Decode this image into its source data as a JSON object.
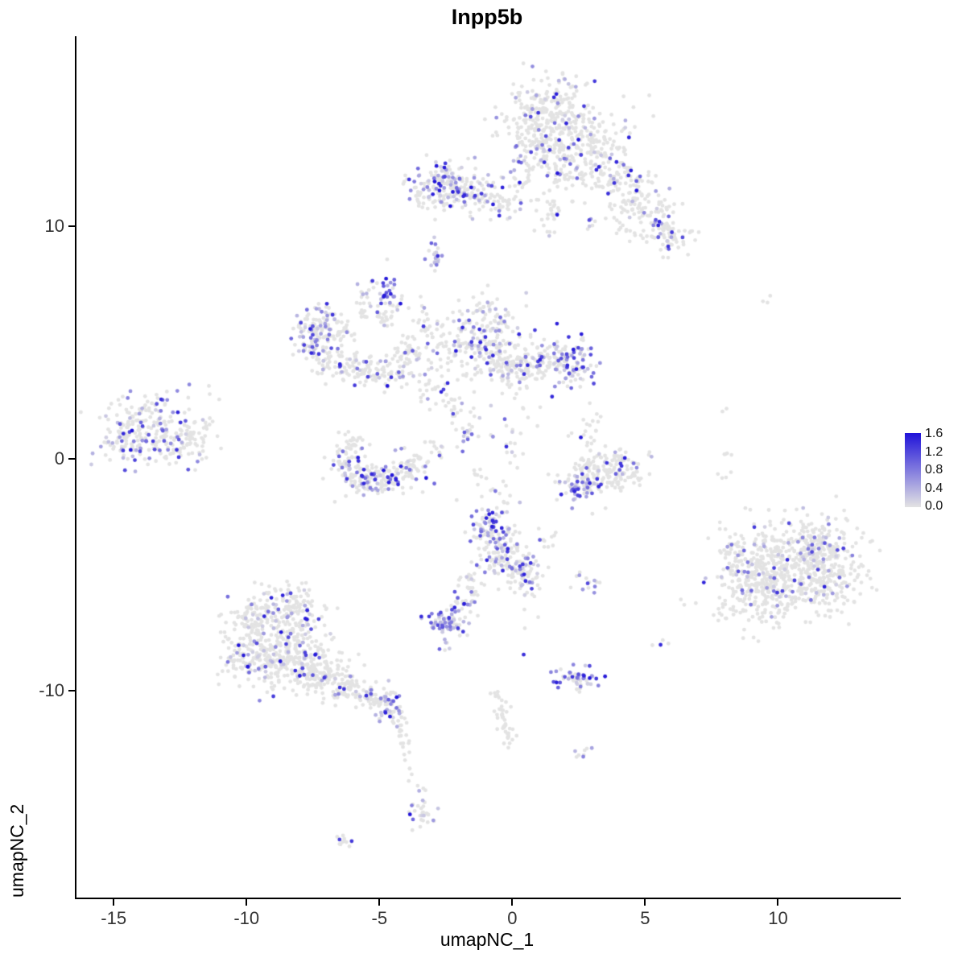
{
  "chart_data": {
    "type": "scatter",
    "title": "Inpp5b",
    "xlabel": "umapNC_1",
    "ylabel": "umapNC_2",
    "xlim": [
      -16.4,
      14.5
    ],
    "ylim": [
      -18.9,
      18.2
    ],
    "x_ticks": [
      -15,
      -10,
      -5,
      0,
      5,
      10
    ],
    "y_ticks": [
      -10,
      0,
      10
    ],
    "grid": false,
    "background": "#FFFFFF",
    "point_radius": 2.4,
    "seed": 42,
    "legend": {
      "position": "right",
      "ticks": [
        "1.6",
        "1.2",
        "0.8",
        "0.4",
        "0.0"
      ],
      "low_value": 0.0,
      "high_value": 1.6,
      "low_color": "#E3E3E3",
      "high_color": "#2013D9"
    },
    "clusters_schema": [
      "center_x",
      "center_y",
      "sd_x",
      "sd_y",
      "n_points",
      "fraction_expressing"
    ],
    "clusters": [
      [
        1.3,
        14.8,
        0.9,
        0.8,
        260,
        0.12
      ],
      [
        2.6,
        13.6,
        1.0,
        0.7,
        180,
        0.12
      ],
      [
        0.9,
        13.2,
        0.5,
        0.5,
        60,
        0.1
      ],
      [
        2.0,
        12.1,
        0.4,
        0.7,
        40,
        0.05
      ],
      [
        3.8,
        12.2,
        0.8,
        0.5,
        90,
        0.1
      ],
      [
        5.0,
        10.8,
        0.7,
        0.6,
        110,
        0.12
      ],
      [
        5.8,
        9.6,
        0.5,
        0.4,
        70,
        0.18
      ],
      [
        1.4,
        10.4,
        0.3,
        0.5,
        25,
        0.1
      ],
      [
        3.0,
        10.1,
        0.15,
        0.2,
        6,
        0.3
      ],
      [
        0.4,
        12.2,
        0.3,
        0.6,
        20,
        0.1
      ],
      [
        -2.6,
        11.8,
        0.55,
        0.45,
        120,
        0.45
      ],
      [
        -1.6,
        11.5,
        0.5,
        0.5,
        80,
        0.2
      ],
      [
        -0.5,
        11.2,
        0.6,
        0.35,
        60,
        0.15
      ],
      [
        -3.4,
        11.4,
        0.3,
        0.3,
        25,
        0.1
      ],
      [
        -2.9,
        8.9,
        0.18,
        0.35,
        22,
        0.7
      ],
      [
        -4.7,
        7.3,
        0.2,
        0.4,
        28,
        0.75
      ],
      [
        -4.5,
        6.4,
        0.15,
        0.3,
        12,
        0.2
      ],
      [
        -3.4,
        5.8,
        0.25,
        0.5,
        20,
        0.15
      ],
      [
        -1.1,
        5.6,
        0.7,
        0.7,
        160,
        0.3
      ],
      [
        -0.6,
        4.2,
        0.8,
        0.6,
        120,
        0.2
      ],
      [
        0.3,
        3.8,
        0.5,
        0.4,
        60,
        0.15
      ],
      [
        2.3,
        4.0,
        0.45,
        0.5,
        80,
        0.55
      ],
      [
        1.4,
        4.3,
        0.5,
        0.5,
        80,
        0.2
      ],
      [
        -7.2,
        5.8,
        0.5,
        0.5,
        80,
        0.35
      ],
      [
        -7.6,
        4.9,
        0.35,
        0.5,
        50,
        0.3
      ],
      [
        -6.8,
        4.3,
        0.4,
        0.35,
        45,
        0.2
      ],
      [
        -6.0,
        3.9,
        0.4,
        0.3,
        40,
        0.15
      ],
      [
        -5.2,
        3.6,
        0.4,
        0.3,
        40,
        0.2
      ],
      [
        -4.4,
        3.9,
        0.35,
        0.35,
        40,
        0.25
      ],
      [
        -3.9,
        4.6,
        0.3,
        0.3,
        30,
        0.2
      ],
      [
        -6.4,
        5.5,
        0.3,
        0.3,
        25,
        0.1
      ],
      [
        -5.6,
        7.0,
        0.2,
        0.5,
        25,
        0.15
      ],
      [
        -4.9,
        6.2,
        0.2,
        0.3,
        15,
        0.1
      ],
      [
        -2.7,
        4.7,
        0.5,
        0.6,
        35,
        0.15
      ],
      [
        -3.1,
        3.0,
        0.4,
        0.4,
        20,
        0.1
      ],
      [
        -2.3,
        2.3,
        0.3,
        0.5,
        18,
        0.3
      ],
      [
        -1.6,
        1.3,
        0.3,
        0.4,
        15,
        0.3
      ],
      [
        -13.6,
        1.2,
        0.9,
        0.75,
        200,
        0.3
      ],
      [
        -12.3,
        0.6,
        0.6,
        0.5,
        60,
        0.1
      ],
      [
        -14.6,
        0.9,
        0.4,
        0.5,
        40,
        0.25
      ],
      [
        -11.6,
        1.6,
        0.5,
        0.8,
        12,
        0.1
      ],
      [
        -6.2,
        -0.2,
        0.4,
        0.5,
        60,
        0.2
      ],
      [
        -5.5,
        -0.8,
        0.5,
        0.35,
        70,
        0.25
      ],
      [
        -4.6,
        -0.9,
        0.5,
        0.35,
        60,
        0.2
      ],
      [
        -3.8,
        -0.4,
        0.4,
        0.4,
        50,
        0.25
      ],
      [
        -5.9,
        0.7,
        0.3,
        0.3,
        25,
        0.1
      ],
      [
        -3.0,
        0.4,
        0.3,
        0.3,
        12,
        0.1
      ],
      [
        -1.8,
        0.8,
        0.2,
        0.4,
        12,
        0.5
      ],
      [
        -1.2,
        -0.7,
        0.2,
        0.3,
        8,
        0.2
      ],
      [
        0.2,
        1.6,
        0.3,
        0.6,
        14,
        0.1
      ],
      [
        0.0,
        0.3,
        0.2,
        0.3,
        8,
        0.1
      ],
      [
        -0.4,
        -1.6,
        0.25,
        0.5,
        12,
        0.2
      ],
      [
        3.4,
        -0.6,
        0.7,
        0.5,
        120,
        0.08
      ],
      [
        2.6,
        -1.2,
        0.4,
        0.3,
        60,
        0.55
      ],
      [
        4.3,
        -0.3,
        0.4,
        0.4,
        40,
        0.1
      ],
      [
        3.0,
        0.8,
        0.4,
        0.4,
        15,
        0.05
      ],
      [
        2.8,
        1.7,
        0.25,
        0.35,
        8,
        0.0
      ],
      [
        -0.8,
        -3.0,
        0.45,
        0.5,
        90,
        0.5
      ],
      [
        -0.3,
        -4.3,
        0.5,
        0.6,
        110,
        0.3
      ],
      [
        0.4,
        -4.9,
        0.4,
        0.4,
        50,
        0.35
      ],
      [
        1.4,
        -3.4,
        0.25,
        0.4,
        10,
        0.1
      ],
      [
        -1.5,
        -5.6,
        0.3,
        0.4,
        30,
        0.5
      ],
      [
        -2.0,
        -6.3,
        0.2,
        0.3,
        20,
        0.4
      ],
      [
        -2.4,
        -7.1,
        0.4,
        0.25,
        70,
        0.65
      ],
      [
        -2.5,
        -8.0,
        0.1,
        0.15,
        6,
        0.5
      ],
      [
        0.7,
        -7.0,
        0.3,
        0.8,
        8,
        0.3
      ],
      [
        2.8,
        -5.3,
        0.35,
        0.2,
        14,
        0.4
      ],
      [
        10.6,
        -4.6,
        1.3,
        1.0,
        450,
        0.1
      ],
      [
        9.3,
        -5.8,
        0.8,
        0.8,
        180,
        0.1
      ],
      [
        11.6,
        -3.6,
        0.7,
        0.5,
        120,
        0.12
      ],
      [
        11.9,
        -5.5,
        0.6,
        0.6,
        90,
        0.1
      ],
      [
        8.4,
        -4.6,
        0.4,
        0.5,
        50,
        0.12
      ],
      [
        8.0,
        -0.2,
        0.15,
        0.5,
        8,
        0.0
      ],
      [
        8.0,
        2.1,
        0.1,
        0.1,
        2,
        0.0
      ],
      [
        9.5,
        6.8,
        0.12,
        0.25,
        3,
        0.0
      ],
      [
        7.9,
        -2.9,
        0.1,
        0.1,
        2,
        0.0
      ],
      [
        5.6,
        -7.9,
        0.12,
        0.15,
        4,
        0.4
      ],
      [
        6.4,
        -6.3,
        0.1,
        0.1,
        2,
        0.0
      ],
      [
        -8.8,
        -7.5,
        0.9,
        0.8,
        220,
        0.18
      ],
      [
        -9.3,
        -8.8,
        0.7,
        0.6,
        140,
        0.15
      ],
      [
        -7.8,
        -8.8,
        0.7,
        0.6,
        130,
        0.12
      ],
      [
        -8.2,
        -6.3,
        0.6,
        0.5,
        80,
        0.15
      ],
      [
        -7.0,
        -9.5,
        0.5,
        0.4,
        60,
        0.1
      ],
      [
        -9.9,
        -7.0,
        0.4,
        0.5,
        50,
        0.12
      ],
      [
        -10.3,
        -8.5,
        0.3,
        0.4,
        30,
        0.1
      ],
      [
        -6.2,
        -9.9,
        0.4,
        0.3,
        45,
        0.1
      ],
      [
        -5.4,
        -10.3,
        0.35,
        0.3,
        40,
        0.2
      ],
      [
        -4.6,
        -10.6,
        0.3,
        0.35,
        45,
        0.45
      ],
      [
        -4.2,
        -11.6,
        0.15,
        0.4,
        18,
        0.3
      ],
      [
        -4.0,
        -12.7,
        0.1,
        0.3,
        8,
        0.2
      ],
      [
        -3.9,
        -13.6,
        0.08,
        0.15,
        3,
        0.0
      ],
      [
        -3.4,
        -15.4,
        0.25,
        0.35,
        25,
        0.35
      ],
      [
        -3.3,
        -14.4,
        0.1,
        0.25,
        6,
        0.1
      ],
      [
        -6.3,
        -16.4,
        0.25,
        0.12,
        12,
        0.25
      ],
      [
        -0.4,
        -11.0,
        0.15,
        0.4,
        20,
        0.05
      ],
      [
        -0.2,
        -12.0,
        0.15,
        0.4,
        18,
        0.05
      ],
      [
        -0.6,
        -10.2,
        0.1,
        0.2,
        6,
        0.0
      ],
      [
        2.4,
        -9.5,
        0.45,
        0.25,
        55,
        0.6
      ],
      [
        2.6,
        -12.6,
        0.15,
        0.2,
        8,
        0.5
      ]
    ]
  }
}
